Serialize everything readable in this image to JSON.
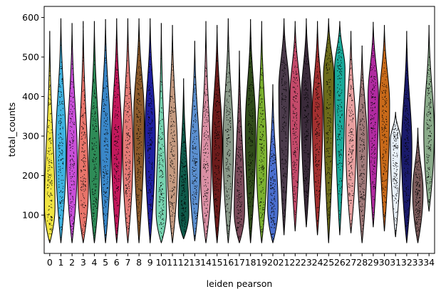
{
  "chart_data": {
    "type": "violin",
    "xlabel": "leiden pearson",
    "ylabel": "total_counts",
    "ylim": [
      3,
      628
    ],
    "yticks": [
      100,
      200,
      300,
      400,
      500,
      600
    ],
    "grid": false,
    "legend": "none",
    "points_overlay": true,
    "categories": [
      "0",
      "1",
      "2",
      "3",
      "4",
      "5",
      "6",
      "7",
      "8",
      "9",
      "10",
      "11",
      "12",
      "13",
      "14",
      "15",
      "16",
      "17",
      "18",
      "19",
      "20",
      "21",
      "22",
      "23",
      "24",
      "25",
      "26",
      "27",
      "28",
      "29",
      "30",
      "31",
      "32",
      "33",
      "34"
    ],
    "colors": [
      "#f0e442",
      "#3fb2e0",
      "#c84fd8",
      "#e8746a",
      "#2e8b57",
      "#3a87c8",
      "#c2185b",
      "#e37a76",
      "#8b5a2b",
      "#1f1f9e",
      "#77d3b0",
      "#c49a80",
      "#0f5a4a",
      "#5b8fcf",
      "#d98fa3",
      "#6b1b1b",
      "#8a9a8a",
      "#7a4a5a",
      "#2f4a1a",
      "#7ab02f",
      "#4a6fd0",
      "#4a3a4a",
      "#c44a6a",
      "#3a2a3a",
      "#a23030",
      "#6b6b1a",
      "#1aaa9a",
      "#e8a0a0",
      "#a07a7a",
      "#b02aa0",
      "#c86a1a",
      "#e8f0f8",
      "#1a1a6a",
      "#7a5a5a",
      "#8aab8a"
    ],
    "series": [
      {
        "name": "total_counts",
        "values": [
          {
            "min": 30,
            "max": 565,
            "q1": 90,
            "median": 140,
            "q3": 220,
            "mode": 120
          },
          {
            "min": 30,
            "max": 597,
            "q1": 120,
            "median": 200,
            "q3": 300,
            "mode": 270
          },
          {
            "min": 30,
            "max": 585,
            "q1": 110,
            "median": 180,
            "q3": 280,
            "mode": 240
          },
          {
            "min": 30,
            "max": 590,
            "q1": 90,
            "median": 140,
            "q3": 220,
            "mode": 170
          },
          {
            "min": 30,
            "max": 590,
            "q1": 100,
            "median": 170,
            "q3": 270,
            "mode": 230
          },
          {
            "min": 30,
            "max": 595,
            "q1": 120,
            "median": 210,
            "q3": 320,
            "mode": 280
          },
          {
            "min": 30,
            "max": 597,
            "q1": 130,
            "median": 220,
            "q3": 330,
            "mode": 280
          },
          {
            "min": 30,
            "max": 597,
            "q1": 120,
            "median": 200,
            "q3": 320,
            "mode": 270
          },
          {
            "min": 30,
            "max": 597,
            "q1": 160,
            "median": 270,
            "q3": 380,
            "mode": 350
          },
          {
            "min": 30,
            "max": 597,
            "q1": 130,
            "median": 230,
            "q3": 350,
            "mode": 310
          },
          {
            "min": 30,
            "max": 585,
            "q1": 80,
            "median": 120,
            "q3": 180,
            "mode": 110
          },
          {
            "min": 30,
            "max": 580,
            "q1": 100,
            "median": 170,
            "q3": 270,
            "mode": 240
          },
          {
            "min": 40,
            "max": 445,
            "q1": 80,
            "median": 105,
            "q3": 130,
            "mode": 105
          },
          {
            "min": 35,
            "max": 540,
            "q1": 100,
            "median": 160,
            "q3": 240,
            "mode": 220
          },
          {
            "min": 30,
            "max": 590,
            "q1": 100,
            "median": 160,
            "q3": 240,
            "mode": 200
          },
          {
            "min": 30,
            "max": 580,
            "q1": 130,
            "median": 210,
            "q3": 320,
            "mode": 280
          },
          {
            "min": 30,
            "max": 597,
            "q1": 130,
            "median": 220,
            "q3": 330,
            "mode": 280
          },
          {
            "min": 30,
            "max": 515,
            "q1": 80,
            "median": 120,
            "q3": 180,
            "mode": 110
          },
          {
            "min": 30,
            "max": 595,
            "q1": 150,
            "median": 250,
            "q3": 350,
            "mode": 320
          },
          {
            "min": 30,
            "max": 590,
            "q1": 110,
            "median": 190,
            "q3": 290,
            "mode": 240
          },
          {
            "min": 30,
            "max": 430,
            "q1": 80,
            "median": 110,
            "q3": 150,
            "mode": 120
          },
          {
            "min": 50,
            "max": 597,
            "q1": 200,
            "median": 320,
            "q3": 430,
            "mode": 420
          },
          {
            "min": 60,
            "max": 590,
            "q1": 180,
            "median": 280,
            "q3": 400,
            "mode": 400
          },
          {
            "min": 70,
            "max": 597,
            "q1": 200,
            "median": 320,
            "q3": 440,
            "mode": 390
          },
          {
            "min": 50,
            "max": 590,
            "q1": 170,
            "median": 260,
            "q3": 380,
            "mode": 360
          },
          {
            "min": 30,
            "max": 597,
            "q1": 220,
            "median": 350,
            "q3": 460,
            "mode": 450
          },
          {
            "min": 50,
            "max": 590,
            "q1": 200,
            "median": 300,
            "q3": 420,
            "mode": 470
          },
          {
            "min": 55,
            "max": 565,
            "q1": 160,
            "median": 250,
            "q3": 360,
            "mode": 300
          },
          {
            "min": 30,
            "max": 528,
            "q1": 140,
            "median": 230,
            "q3": 330,
            "mode": 280
          },
          {
            "min": 70,
            "max": 588,
            "q1": 200,
            "median": 300,
            "q3": 420,
            "mode": 400
          },
          {
            "min": 60,
            "max": 580,
            "q1": 180,
            "median": 280,
            "q3": 400,
            "mode": 380
          },
          {
            "min": 45,
            "max": 360,
            "q1": 100,
            "median": 170,
            "q3": 250,
            "mode": 290
          },
          {
            "min": 30,
            "max": 565,
            "q1": 130,
            "median": 220,
            "q3": 330,
            "mode": 270
          },
          {
            "min": 30,
            "max": 320,
            "q1": 100,
            "median": 150,
            "q3": 200,
            "mode": 160
          },
          {
            "min": 110,
            "max": 580,
            "q1": 180,
            "median": 270,
            "q3": 360,
            "mode": 310
          }
        ]
      }
    ]
  }
}
